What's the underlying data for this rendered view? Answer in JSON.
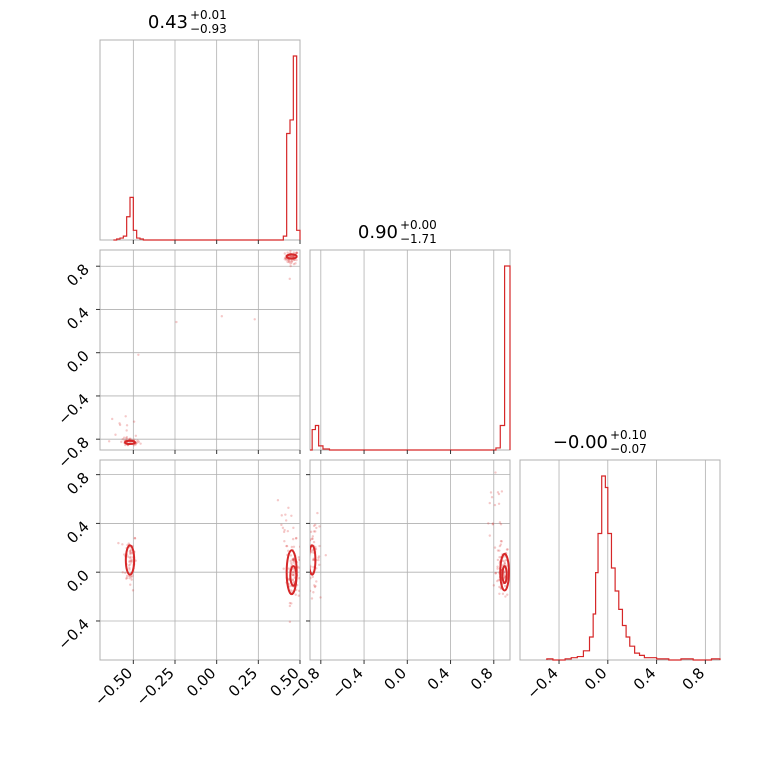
{
  "accent_color": "#d62728",
  "grid_color": "#b0b0b0",
  "chart_data": {
    "type": "corner",
    "params": [
      {
        "title": {
          "median": "0.43",
          "plus": "+0.01",
          "minus": "−0.93"
        },
        "range": [
          -0.7,
          0.5
        ],
        "ticks": [
          -0.5,
          -0.25,
          0.0,
          0.25,
          0.5
        ],
        "tick_labels": [
          "−0.50",
          "−0.25",
          "0.00",
          "0.25",
          "0.50"
        ],
        "hist": {
          "bins": [
            [
              -0.62,
              0.0
            ],
            [
              -0.6,
              0.005
            ],
            [
              -0.58,
              0.01
            ],
            [
              -0.56,
              0.02
            ],
            [
              -0.54,
              0.12
            ],
            [
              -0.52,
              0.22
            ],
            [
              -0.5,
              0.05
            ],
            [
              -0.48,
              0.01
            ],
            [
              -0.46,
              0.005
            ],
            [
              -0.44,
              0.0
            ],
            [
              0.38,
              0.0
            ],
            [
              0.4,
              0.02
            ],
            [
              0.42,
              0.55
            ],
            [
              0.44,
              0.62
            ],
            [
              0.46,
              0.95
            ],
            [
              0.48,
              0.05
            ],
            [
              0.5,
              0.0
            ]
          ]
        }
      },
      {
        "title": {
          "median": "0.90",
          "plus": "+0.00",
          "minus": "−1.71"
        },
        "range": [
          -0.9,
          0.95
        ],
        "ticks": [
          -0.8,
          -0.4,
          0.0,
          0.4,
          0.8
        ],
        "tick_labels": [
          "−0.8",
          "−0.4",
          "0.0",
          "0.4",
          "0.8"
        ],
        "hist": {
          "bins": [
            [
              -0.9,
              0.0
            ],
            [
              -0.88,
              0.1
            ],
            [
              -0.85,
              0.12
            ],
            [
              -0.82,
              0.02
            ],
            [
              -0.78,
              0.005
            ],
            [
              -0.72,
              0.0
            ],
            [
              0.8,
              0.0
            ],
            [
              0.82,
              0.01
            ],
            [
              0.86,
              0.12
            ],
            [
              0.9,
              0.9
            ],
            [
              0.95,
              0.0
            ]
          ]
        }
      },
      {
        "title": {
          "median": "−0.00",
          "plus": "+0.10",
          "minus": "−0.07"
        },
        "range": [
          -0.72,
          0.92
        ],
        "ticks": [
          -0.4,
          0.0,
          0.4,
          0.8
        ],
        "tick_labels": [
          "−0.4",
          "0.0",
          "0.4",
          "0.8"
        ],
        "hist": {
          "bins": [
            [
              -0.5,
              0.005
            ],
            [
              -0.45,
              0.0
            ],
            [
              -0.35,
              0.005
            ],
            [
              -0.3,
              0.01
            ],
            [
              -0.25,
              0.015
            ],
            [
              -0.2,
              0.04
            ],
            [
              -0.15,
              0.1
            ],
            [
              -0.12,
              0.2
            ],
            [
              -0.1,
              0.38
            ],
            [
              -0.08,
              0.55
            ],
            [
              -0.05,
              0.8
            ],
            [
              -0.02,
              0.75
            ],
            [
              0.0,
              0.55
            ],
            [
              0.03,
              0.4
            ],
            [
              0.06,
              0.3
            ],
            [
              0.09,
              0.22
            ],
            [
              0.12,
              0.15
            ],
            [
              0.15,
              0.1
            ],
            [
              0.18,
              0.06
            ],
            [
              0.22,
              0.03
            ],
            [
              0.26,
              0.02
            ],
            [
              0.3,
              0.01
            ],
            [
              0.4,
              0.005
            ],
            [
              0.5,
              0.0
            ],
            [
              0.6,
              0.005
            ],
            [
              0.7,
              0.0
            ],
            [
              0.85,
              0.005
            ],
            [
              0.92,
              0.0
            ]
          ]
        }
      }
    ],
    "scatter": {
      "1_0": [
        {
          "cx": 0.45,
          "cy": 0.88,
          "sx": 0.02,
          "sy": 0.03,
          "n": 60,
          "contours": [
            [
              0.45,
              0.89,
              0.03,
              0.02
            ]
          ]
        },
        {
          "cx": -0.52,
          "cy": -0.83,
          "sx": 0.03,
          "sy": 0.02,
          "n": 40,
          "contours": [
            [
              -0.52,
              -0.83,
              0.03,
              0.015
            ]
          ]
        },
        {
          "cx": -0.55,
          "cy": -0.7,
          "sx": 0.05,
          "sy": 0.08,
          "n": 12,
          "contours": []
        },
        {
          "cx": 0.0,
          "cy": 0.4,
          "sx": 0.3,
          "sy": 0.3,
          "n": 6,
          "contours": []
        }
      ],
      "2_0": [
        {
          "cx": -0.52,
          "cy": 0.1,
          "sx": 0.02,
          "sy": 0.12,
          "n": 60,
          "contours": [
            [
              -0.52,
              0.1,
              0.025,
              0.12
            ]
          ]
        },
        {
          "cx": 0.46,
          "cy": 0.0,
          "sx": 0.02,
          "sy": 0.12,
          "n": 90,
          "contours": [
            [
              0.45,
              0.0,
              0.03,
              0.18
            ],
            [
              0.46,
              -0.03,
              0.018,
              0.08
            ]
          ]
        },
        {
          "cx": 0.42,
          "cy": 0.4,
          "sx": 0.03,
          "sy": 0.15,
          "n": 15,
          "contours": []
        }
      ],
      "2_1": [
        {
          "cx": -0.87,
          "cy": 0.1,
          "sx": 0.03,
          "sy": 0.12,
          "n": 50,
          "contours": [
            [
              -0.88,
              0.1,
              0.03,
              0.12
            ]
          ]
        },
        {
          "cx": 0.88,
          "cy": 0.0,
          "sx": 0.03,
          "sy": 0.12,
          "n": 90,
          "contours": [
            [
              0.9,
              0.0,
              0.04,
              0.15
            ],
            [
              0.9,
              -0.02,
              0.02,
              0.07
            ]
          ]
        },
        {
          "cx": 0.8,
          "cy": 0.45,
          "sx": 0.05,
          "sy": 0.15,
          "n": 15,
          "contours": []
        },
        {
          "cx": -0.8,
          "cy": 0.3,
          "sx": 0.05,
          "sy": 0.15,
          "n": 8,
          "contours": []
        }
      ]
    }
  }
}
